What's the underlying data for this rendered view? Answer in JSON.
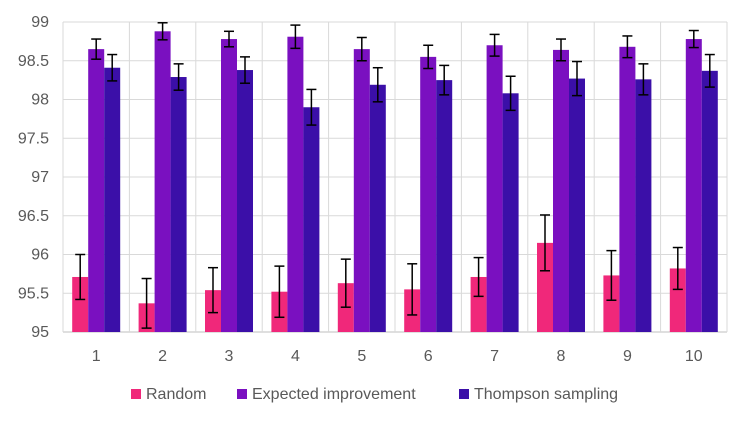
{
  "chart_data": {
    "type": "bar",
    "categories": [
      "1",
      "2",
      "3",
      "4",
      "5",
      "6",
      "7",
      "8",
      "9",
      "10"
    ],
    "ylim": [
      95,
      99
    ],
    "yticks": [
      "95",
      "95.5",
      "96",
      "96.5",
      "97",
      "97.5",
      "98",
      "98.5",
      "99"
    ],
    "grid": "horizontal and vertical",
    "legend": "bottom",
    "series": [
      {
        "name": "Random",
        "color": "#F0287A",
        "values": [
          95.71,
          95.37,
          95.54,
          95.52,
          95.63,
          95.55,
          95.71,
          96.15,
          95.73,
          95.82
        ],
        "error": [
          0.29,
          0.32,
          0.29,
          0.33,
          0.31,
          0.33,
          0.25,
          0.36,
          0.32,
          0.27
        ]
      },
      {
        "name": "Expected improvement",
        "color": "#7A10C0",
        "values": [
          98.65,
          98.88,
          98.78,
          98.81,
          98.65,
          98.55,
          98.7,
          98.64,
          98.68,
          98.78
        ],
        "error": [
          0.13,
          0.11,
          0.1,
          0.15,
          0.15,
          0.15,
          0.14,
          0.14,
          0.14,
          0.11
        ]
      },
      {
        "name": "Thompson sampling",
        "color": "#3B0FA8",
        "values": [
          98.41,
          98.29,
          98.38,
          97.9,
          98.19,
          98.25,
          98.08,
          98.27,
          98.26,
          98.37
        ],
        "error": [
          0.17,
          0.17,
          0.17,
          0.23,
          0.22,
          0.19,
          0.22,
          0.22,
          0.2,
          0.21
        ]
      }
    ]
  }
}
